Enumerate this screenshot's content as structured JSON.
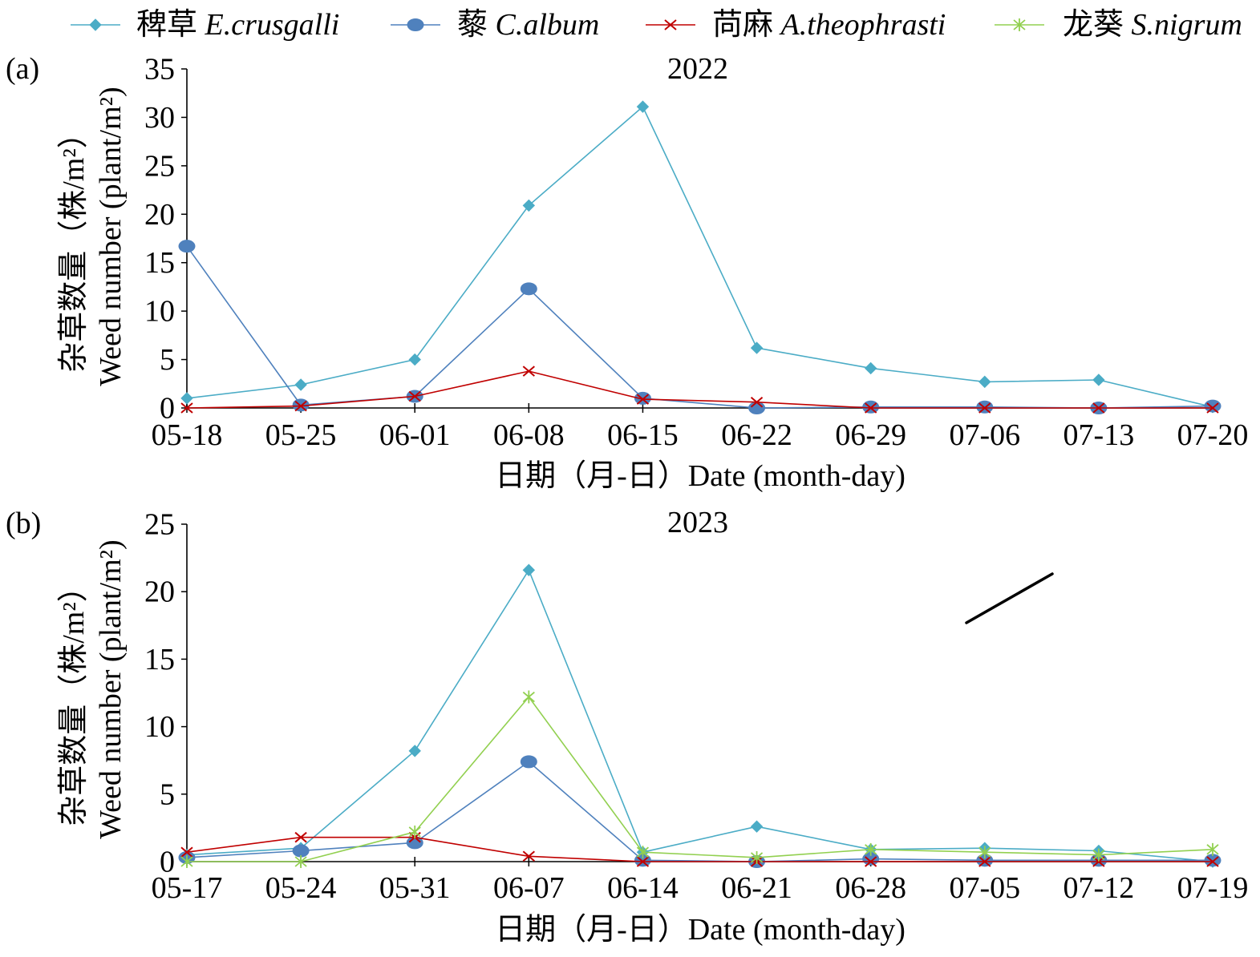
{
  "chart_data": [
    {
      "type": "line",
      "panel_label": "(a)",
      "title": "2022",
      "ylabel": [
        "杂草数量（株/m²）",
        "Weed number (plant/m²)"
      ],
      "xlabel": "日期（月-日）Date (month-day)",
      "categories": [
        "05-18",
        "05-25",
        "06-01",
        "06-08",
        "06-15",
        "06-22",
        "06-29",
        "07-06",
        "07-13",
        "07-20"
      ],
      "ylim": [
        0,
        35
      ],
      "yticks": [
        0,
        5,
        10,
        15,
        20,
        25,
        30,
        35
      ],
      "grid": false,
      "legend": "top",
      "series": [
        {
          "name": "稗草 E.crusgalli",
          "color": "#4BACC6",
          "marker": "diamond",
          "values": [
            1.0,
            2.4,
            5.0,
            20.9,
            31.1,
            6.2,
            4.1,
            2.7,
            2.9,
            0.1
          ]
        },
        {
          "name": "藜 C.album",
          "color": "#4F81BD",
          "marker": "circle",
          "values": [
            16.7,
            0.3,
            1.2,
            12.3,
            1.0,
            0.0,
            0.1,
            0.1,
            0.0,
            0.2
          ]
        },
        {
          "name": "苘麻 A.theophrasti",
          "color": "#C00000",
          "marker": "x",
          "values": [
            0.0,
            0.2,
            1.2,
            3.8,
            0.9,
            0.6,
            0.0,
            0.0,
            0.0,
            0.0
          ]
        }
      ]
    },
    {
      "type": "line",
      "panel_label": "(b)",
      "title": "2023",
      "ylabel": [
        "杂草数量（株/m²）",
        "Weed number (plant/m²)"
      ],
      "xlabel": "日期（月-日）Date (month-day)",
      "categories": [
        "05-17",
        "05-24",
        "05-31",
        "06-07",
        "06-14",
        "06-21",
        "06-28",
        "07-05",
        "07-12",
        "07-19"
      ],
      "ylim": [
        0,
        25
      ],
      "yticks": [
        0,
        5,
        10,
        15,
        20,
        25
      ],
      "grid": false,
      "legend": "top",
      "series": [
        {
          "name": "稗草 E.crusgalli",
          "color": "#4BACC6",
          "marker": "diamond",
          "values": [
            0.5,
            1.0,
            8.2,
            21.6,
            0.7,
            2.6,
            0.9,
            1.0,
            0.8,
            0.0
          ]
        },
        {
          "name": "藜 C.album",
          "color": "#4F81BD",
          "marker": "circle",
          "values": [
            0.3,
            0.8,
            1.4,
            7.4,
            0.1,
            0.0,
            0.2,
            0.1,
            0.1,
            0.1
          ]
        },
        {
          "name": "苘麻 A.theophrasti",
          "color": "#C00000",
          "marker": "x",
          "values": [
            0.7,
            1.8,
            1.8,
            0.4,
            0.0,
            0.0,
            0.0,
            0.0,
            0.0,
            0.0
          ]
        },
        {
          "name": "龙葵 S.nigrum",
          "color": "#92D050",
          "marker": "asterisk",
          "values": [
            0.0,
            0.0,
            2.2,
            12.2,
            0.7,
            0.3,
            0.9,
            0.7,
            0.5,
            0.9
          ]
        }
      ]
    }
  ]
}
